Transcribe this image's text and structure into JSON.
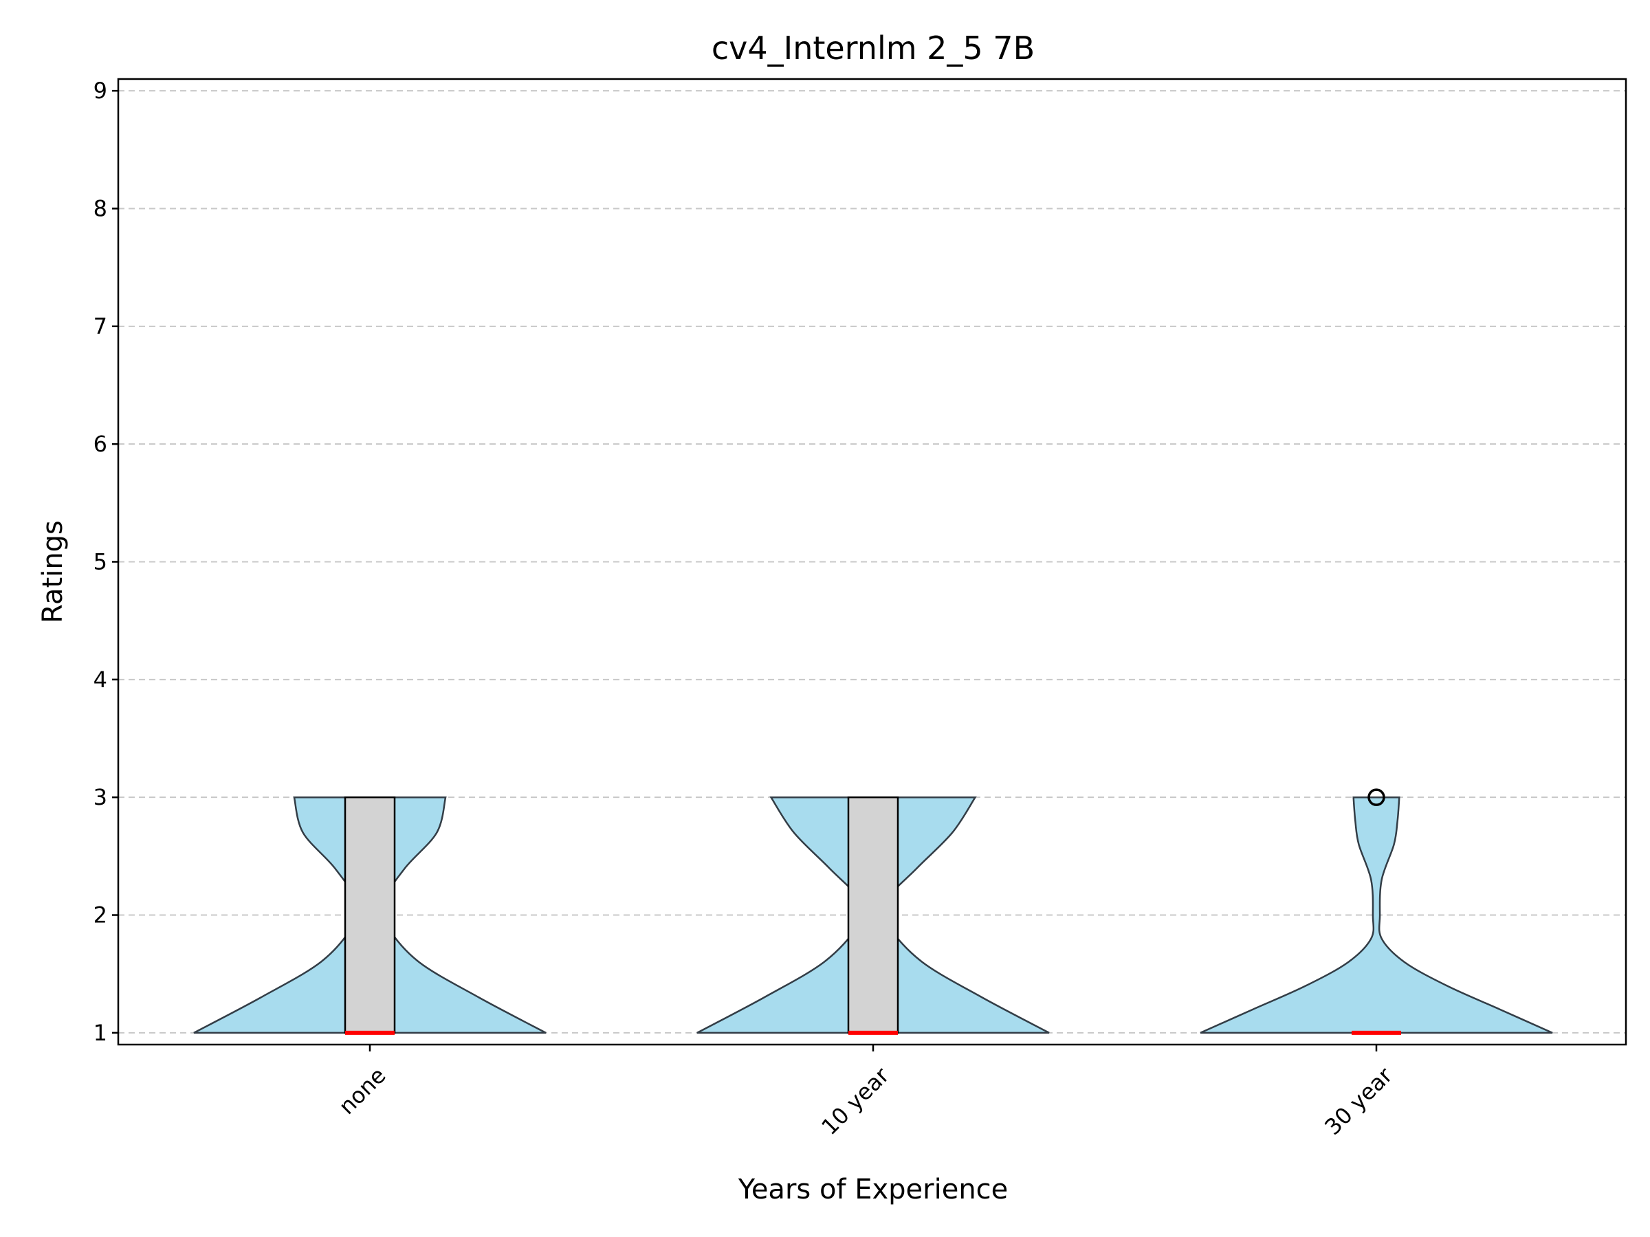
{
  "chart_data": {
    "type": "violin",
    "title": "cv4_Internlm 2_5 7B",
    "xlabel": "Years of Experience",
    "ylabel": "Ratings",
    "ylim": [
      0.9,
      9.1
    ],
    "yticks": [
      "1",
      "2",
      "3",
      "4",
      "5",
      "6",
      "7",
      "8",
      "9"
    ],
    "grid": "horizontal dashed",
    "categories": [
      "none",
      "10 year",
      "30 year"
    ],
    "distributions": [
      {
        "category": "none",
        "min": 1,
        "max": 3,
        "q1": 1,
        "median": 1,
        "q3": 3,
        "density": [
          [
            1.0,
            1.0
          ],
          [
            1.3,
            0.62
          ],
          [
            1.6,
            0.28
          ],
          [
            1.9,
            0.1
          ],
          [
            2.1,
            0.07
          ],
          [
            2.4,
            0.2
          ],
          [
            2.7,
            0.38
          ],
          [
            3.0,
            0.43
          ]
        ],
        "outliers": []
      },
      {
        "category": "10 year",
        "min": 1,
        "max": 3,
        "q1": 1,
        "median": 1,
        "q3": 3,
        "density": [
          [
            1.0,
            1.0
          ],
          [
            1.3,
            0.62
          ],
          [
            1.6,
            0.28
          ],
          [
            1.9,
            0.09
          ],
          [
            2.1,
            0.06
          ],
          [
            2.4,
            0.25
          ],
          [
            2.7,
            0.45
          ],
          [
            3.0,
            0.58
          ]
        ],
        "outliers": []
      },
      {
        "category": "30 year",
        "min": 1,
        "max": 3,
        "q1": 1,
        "median": 1,
        "q3": 1,
        "density": [
          [
            1.0,
            1.0
          ],
          [
            1.2,
            0.7
          ],
          [
            1.4,
            0.4
          ],
          [
            1.6,
            0.16
          ],
          [
            1.8,
            0.03
          ],
          [
            2.0,
            0.02
          ],
          [
            2.3,
            0.03
          ],
          [
            2.6,
            0.1
          ],
          [
            2.8,
            0.12
          ],
          [
            3.0,
            0.13
          ]
        ],
        "outliers": [
          3
        ]
      }
    ],
    "colors": {
      "violin_fill": "#a8dcee",
      "violin_edge": "#333d46",
      "box_fill": "#d3d3d3",
      "median": "#ff0000",
      "grid": "#c8c8c8"
    }
  }
}
